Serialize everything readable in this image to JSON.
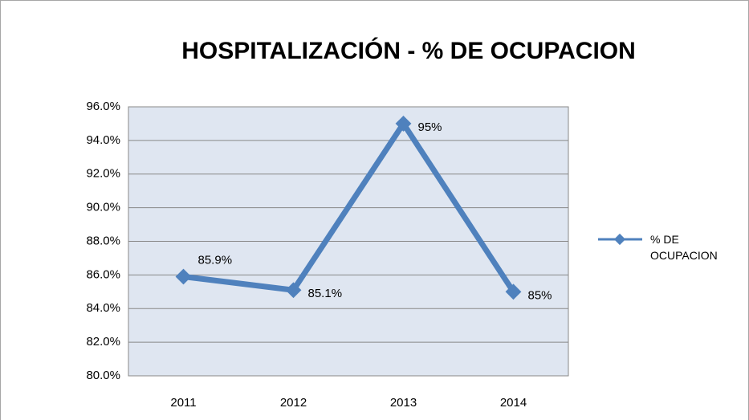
{
  "chart_data": {
    "type": "line",
    "title": "HOSPITALIZACIÓN - % DE OCUPACION",
    "categories": [
      "2011",
      "2012",
      "2013",
      "2014"
    ],
    "series": [
      {
        "name": "% DE OCUPACION",
        "color": "#4f81bd",
        "values": [
          85.9,
          85.1,
          95,
          85
        ],
        "value_labels": [
          "85.9%",
          "85.1%",
          "95%",
          "85%"
        ]
      }
    ],
    "ylim": [
      80,
      96
    ],
    "yticks": [
      {
        "value": 80,
        "label": "80.0%"
      },
      {
        "value": 82,
        "label": "82.0%"
      },
      {
        "value": 84,
        "label": "84.0%"
      },
      {
        "value": 86,
        "label": "86.0%"
      },
      {
        "value": 88,
        "label": "88.0%"
      },
      {
        "value": 90,
        "label": "90.0%"
      },
      {
        "value": 92,
        "label": "92.0%"
      },
      {
        "value": 94,
        "label": "94.0%"
      },
      {
        "value": 96,
        "label": "96.0%"
      }
    ],
    "grid": true,
    "legend": "right"
  }
}
